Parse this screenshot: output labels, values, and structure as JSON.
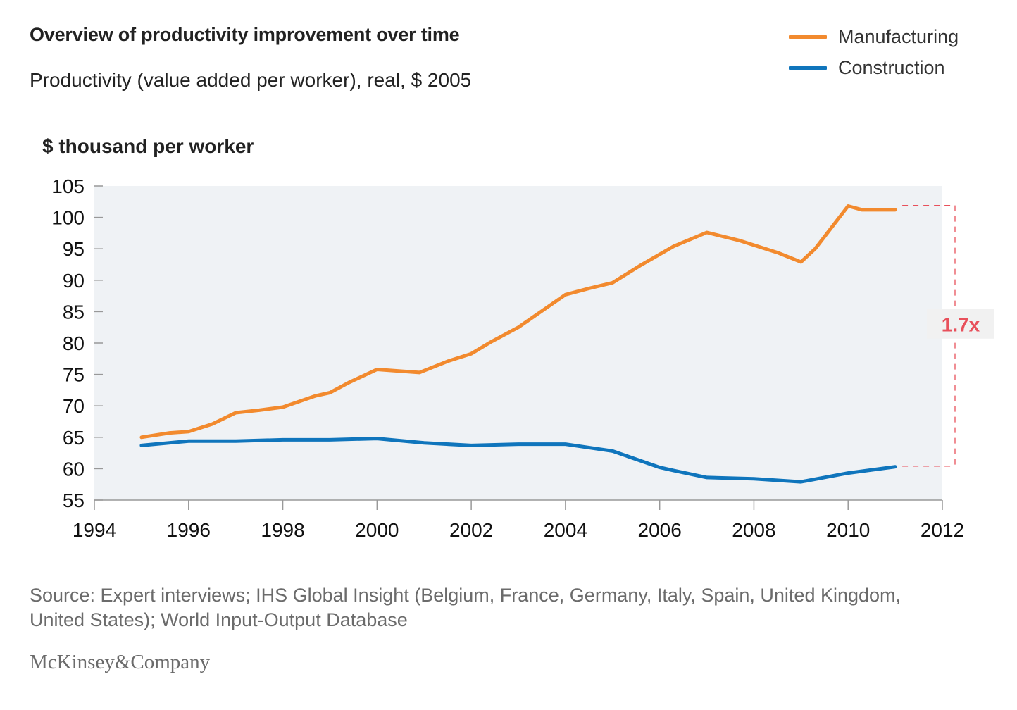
{
  "title": "Overview of productivity improvement over time",
  "subtitle": "Productivity (value added per worker), real, $ 2005",
  "legend": [
    {
      "label": "Manufacturing",
      "color": "#f28a2e"
    },
    {
      "label": "Construction",
      "color": "#0f75bc"
    }
  ],
  "source": "Source: Expert interviews; IHS Global Insight (Belgium, France, Germany, Italy, Spain, United Kingdom, United States); World Input-Output Database",
  "logo": "McKinsey&Company",
  "chart_data": {
    "type": "line",
    "ylabel": "$ thousand per worker",
    "xlabel": "",
    "xlim": [
      1994,
      2012
    ],
    "ylim": [
      55,
      105
    ],
    "xticks": [
      "1994",
      "1996",
      "1998",
      "2000",
      "2002",
      "2004",
      "2006",
      "2008",
      "2010",
      "2012"
    ],
    "yticks": [
      "105",
      "100",
      "95",
      "90",
      "85",
      "80",
      "75",
      "70",
      "65",
      "60",
      "55"
    ],
    "grid": false,
    "background": "#eff2f5",
    "legend_position": "top-right",
    "series": [
      {
        "name": "Manufacturing",
        "color": "#f28a2e",
        "x": [
          1995,
          1995.6,
          1996,
          1996.5,
          1997,
          1997.5,
          1998,
          1998.7,
          1999,
          1999.4,
          2000,
          2000.9,
          2001.5,
          2002,
          2002.4,
          2003,
          2003.5,
          2004,
          2004.5,
          2005,
          2005.6,
          2006.3,
          2007,
          2007.7,
          2008.5,
          2009,
          2009.3,
          2010,
          2010.3,
          2011
        ],
        "values": [
          65.0,
          65.7,
          65.9,
          67.1,
          68.9,
          69.3,
          69.8,
          71.6,
          72.1,
          73.7,
          75.8,
          75.3,
          77.1,
          78.3,
          80.1,
          82.5,
          85.1,
          87.7,
          88.7,
          89.6,
          92.4,
          95.4,
          97.6,
          96.3,
          94.4,
          92.9,
          95.0,
          101.8,
          101.2,
          101.2
        ]
      },
      {
        "name": "Construction",
        "color": "#0f75bc",
        "x": [
          1995,
          1996,
          1997,
          1998,
          1999,
          2000,
          2001,
          2002,
          2003,
          2004,
          2005,
          2006,
          2006.3,
          2007,
          2008,
          2009,
          2010,
          2011
        ],
        "values": [
          63.7,
          64.4,
          64.4,
          64.6,
          64.6,
          64.8,
          64.1,
          63.7,
          63.9,
          63.9,
          62.8,
          60.2,
          59.7,
          58.6,
          58.4,
          57.9,
          59.3,
          60.3
        ]
      }
    ],
    "annotation": {
      "label": "1.7x",
      "from_value": 101.9,
      "to_value": 60.4,
      "color": "#e8505b"
    }
  }
}
